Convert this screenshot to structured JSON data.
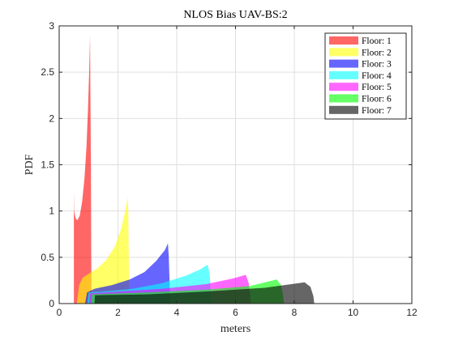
{
  "chart_data": {
    "type": "area",
    "title": "NLOS Bias UAV-BS:2",
    "xlabel": "meters",
    "ylabel": "PDF",
    "xlim": [
      0,
      12
    ],
    "ylim": [
      0,
      3
    ],
    "xticks": [
      0,
      2,
      4,
      6,
      8,
      10,
      12
    ],
    "yticks": [
      0,
      0.5,
      1,
      1.5,
      2,
      2.5,
      3
    ],
    "ytick_labels": [
      "0",
      "0.5",
      "1",
      "1.5",
      "2",
      "2.5",
      "3"
    ],
    "grid": true,
    "legend_position": "top-right",
    "series": [
      {
        "name": "Floor: 1",
        "color": "#ff0000",
        "opacity": 0.6,
        "points": [
          [
            0.5,
            0
          ],
          [
            0.5,
            1.23
          ],
          [
            0.51,
            1.0
          ],
          [
            0.56,
            0.92
          ],
          [
            0.62,
            0.9
          ],
          [
            0.7,
            0.95
          ],
          [
            0.78,
            1.1
          ],
          [
            0.86,
            1.35
          ],
          [
            0.93,
            1.7
          ],
          [
            0.98,
            2.1
          ],
          [
            1.02,
            2.5
          ],
          [
            1.05,
            2.9
          ],
          [
            1.06,
            2.4
          ],
          [
            1.08,
            1.5
          ],
          [
            1.09,
            0.6
          ],
          [
            1.1,
            0
          ]
        ]
      },
      {
        "name": "Floor: 2",
        "color": "#ffff00",
        "opacity": 0.6,
        "points": [
          [
            0.6,
            0
          ],
          [
            0.68,
            0.2
          ],
          [
            0.8,
            0.28
          ],
          [
            1.0,
            0.32
          ],
          [
            1.3,
            0.38
          ],
          [
            1.6,
            0.47
          ],
          [
            1.9,
            0.62
          ],
          [
            2.1,
            0.8
          ],
          [
            2.25,
            1.0
          ],
          [
            2.33,
            1.15
          ],
          [
            2.35,
            1.0
          ],
          [
            2.37,
            0.5
          ],
          [
            2.38,
            0
          ]
        ]
      },
      {
        "name": "Floor: 3",
        "color": "#0000ff",
        "opacity": 0.6,
        "points": [
          [
            0.88,
            0
          ],
          [
            0.95,
            0.12
          ],
          [
            1.2,
            0.16
          ],
          [
            1.8,
            0.2
          ],
          [
            2.4,
            0.26
          ],
          [
            2.9,
            0.34
          ],
          [
            3.3,
            0.46
          ],
          [
            3.6,
            0.58
          ],
          [
            3.7,
            0.65
          ],
          [
            3.73,
            0.5
          ],
          [
            3.76,
            0.2
          ],
          [
            3.78,
            0
          ]
        ]
      },
      {
        "name": "Floor: 4",
        "color": "#00ffff",
        "opacity": 0.6,
        "points": [
          [
            0.95,
            0
          ],
          [
            1.0,
            0.12
          ],
          [
            1.5,
            0.13
          ],
          [
            2.5,
            0.16
          ],
          [
            3.5,
            0.22
          ],
          [
            4.3,
            0.3
          ],
          [
            4.8,
            0.37
          ],
          [
            5.05,
            0.42
          ],
          [
            5.12,
            0.32
          ],
          [
            5.16,
            0.12
          ],
          [
            5.18,
            0
          ]
        ]
      },
      {
        "name": "Floor: 5",
        "color": "#ff00ff",
        "opacity": 0.6,
        "points": [
          [
            1.02,
            0
          ],
          [
            1.05,
            0.11
          ],
          [
            2,
            0.13
          ],
          [
            3.5,
            0.16
          ],
          [
            5,
            0.21
          ],
          [
            5.9,
            0.27
          ],
          [
            6.35,
            0.31
          ],
          [
            6.45,
            0.22
          ],
          [
            6.5,
            0.08
          ],
          [
            6.52,
            0
          ]
        ]
      },
      {
        "name": "Floor: 6",
        "color": "#00ff00",
        "opacity": 0.6,
        "points": [
          [
            1.1,
            0
          ],
          [
            1.12,
            0.1
          ],
          [
            3,
            0.12
          ],
          [
            5,
            0.15
          ],
          [
            6.5,
            0.19
          ],
          [
            7.4,
            0.26
          ],
          [
            7.55,
            0.2
          ],
          [
            7.62,
            0.08
          ],
          [
            7.65,
            0
          ]
        ]
      },
      {
        "name": "Floor: 7",
        "color": "#000000",
        "opacity": 0.6,
        "points": [
          [
            1.2,
            0
          ],
          [
            1.22,
            0.09
          ],
          [
            3,
            0.1
          ],
          [
            5,
            0.13
          ],
          [
            7,
            0.17
          ],
          [
            8.35,
            0.23
          ],
          [
            8.55,
            0.18
          ],
          [
            8.65,
            0.08
          ],
          [
            8.68,
            0
          ]
        ]
      }
    ]
  }
}
